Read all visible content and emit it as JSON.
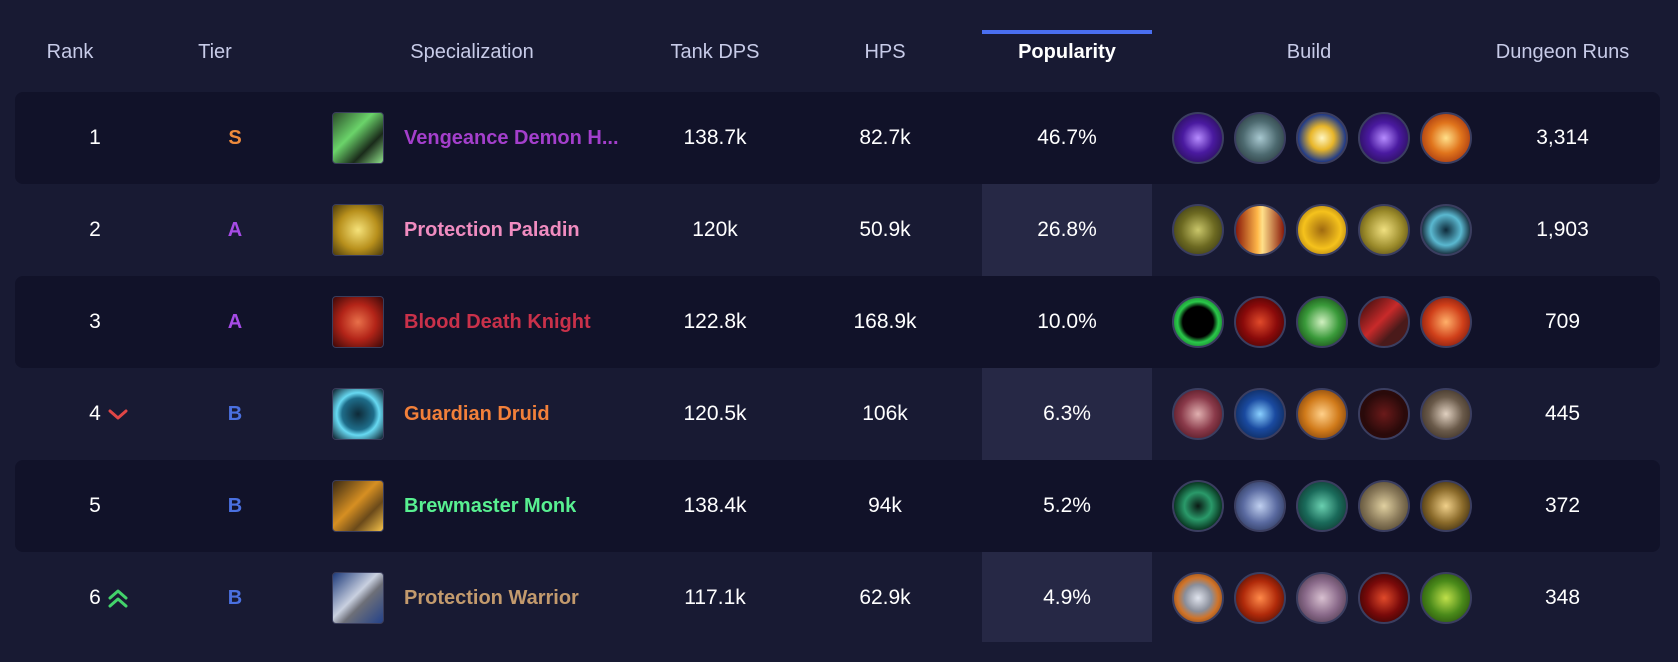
{
  "header": {
    "rank": "Rank",
    "tier": "Tier",
    "specialization": "Specialization",
    "tank_dps": "Tank DPS",
    "hps": "HPS",
    "popularity": "Popularity",
    "build": "Build",
    "dungeon_runs": "Dungeon Runs",
    "active_sort": "Popularity"
  },
  "colors": {
    "background": "#181a33",
    "row_dark": "#111229",
    "popularity_column": "#262845",
    "accent": "#4a6ff0",
    "tier_S": "#ee8a3c",
    "tier_A": "#a64be6",
    "tier_B": "#4a70e0",
    "trend_down": "#e04646",
    "trend_up": "#43d36b"
  },
  "rows": [
    {
      "rank": "1",
      "tier": "S",
      "tier_color": "#ee8a3c",
      "trend": null,
      "spec": "Vengeance Demon H...",
      "spec_color": "#a43fcc",
      "spec_icon": "vengeance-demon-hunter-icon",
      "tank_dps": "138.7k",
      "hps": "82.7k",
      "popularity": "46.7%",
      "build": [
        "void-orb-icon",
        "skull-icon",
        "light-burst-icon",
        "void-orb-icon",
        "fire-hand-icon"
      ],
      "dungeon_runs": "3,314"
    },
    {
      "rank": "2",
      "tier": "A",
      "tier_color": "#a64be6",
      "trend": null,
      "spec": "Protection Paladin",
      "spec_color": "#f08cc0",
      "spec_icon": "protection-paladin-icon",
      "tank_dps": "120k",
      "hps": "50.9k",
      "popularity": "26.8%",
      "build": [
        "lion-icon",
        "fire-pillar-icon",
        "golden-guardian-icon",
        "golden-helm-icon",
        "rune-ring-icon"
      ],
      "dungeon_runs": "1,903"
    },
    {
      "rank": "3",
      "tier": "A",
      "tier_color": "#a64be6",
      "trend": null,
      "spec": "Blood Death Knight",
      "spec_color": "#c9314a",
      "spec_icon": "blood-death-knight-icon",
      "tank_dps": "122.8k",
      "hps": "168.9k",
      "popularity": "10.0%",
      "build": [
        "green-portal-icon",
        "blood-orb-icon",
        "green-skull-icon",
        "crimson-blade-icon",
        "flaming-fist-icon"
      ],
      "dungeon_runs": "709"
    },
    {
      "rank": "4",
      "tier": "B",
      "tier_color": "#4a70e0",
      "trend": "down",
      "spec": "Guardian Druid",
      "spec_color": "#f2803a",
      "spec_icon": "guardian-druid-icon",
      "tank_dps": "120.5k",
      "hps": "106k",
      "popularity": "6.3%",
      "build": [
        "claw-slash-icon",
        "blue-strike-icon",
        "amber-rune-icon",
        "shadow-bear-icon",
        "fang-icon"
      ],
      "dungeon_runs": "445"
    },
    {
      "rank": "5",
      "tier": "B",
      "tier_color": "#4a70e0",
      "trend": null,
      "spec": "Brewmaster Monk",
      "spec_color": "#58f091",
      "spec_icon": "brewmaster-monk-icon",
      "tank_dps": "138.4k",
      "hps": "94k",
      "popularity": "5.2%",
      "build": [
        "jade-swirl-icon",
        "staff-strike-icon",
        "jade-serpent-icon",
        "stone-idol-icon",
        "monk-fist-icon"
      ],
      "dungeon_runs": "372"
    },
    {
      "rank": "6",
      "tier": "B",
      "tier_color": "#4a70e0",
      "trend": "up",
      "spec": "Protection Warrior",
      "spec_color": "#c39a6d",
      "spec_icon": "protection-warrior-icon",
      "tank_dps": "117.1k",
      "hps": "62.9k",
      "popularity": "4.9%",
      "build": [
        "shield-icon",
        "crescent-slash-icon",
        "warrior-face-icon",
        "demon-icon",
        "orc-icon"
      ],
      "dungeon_runs": "348"
    }
  ]
}
